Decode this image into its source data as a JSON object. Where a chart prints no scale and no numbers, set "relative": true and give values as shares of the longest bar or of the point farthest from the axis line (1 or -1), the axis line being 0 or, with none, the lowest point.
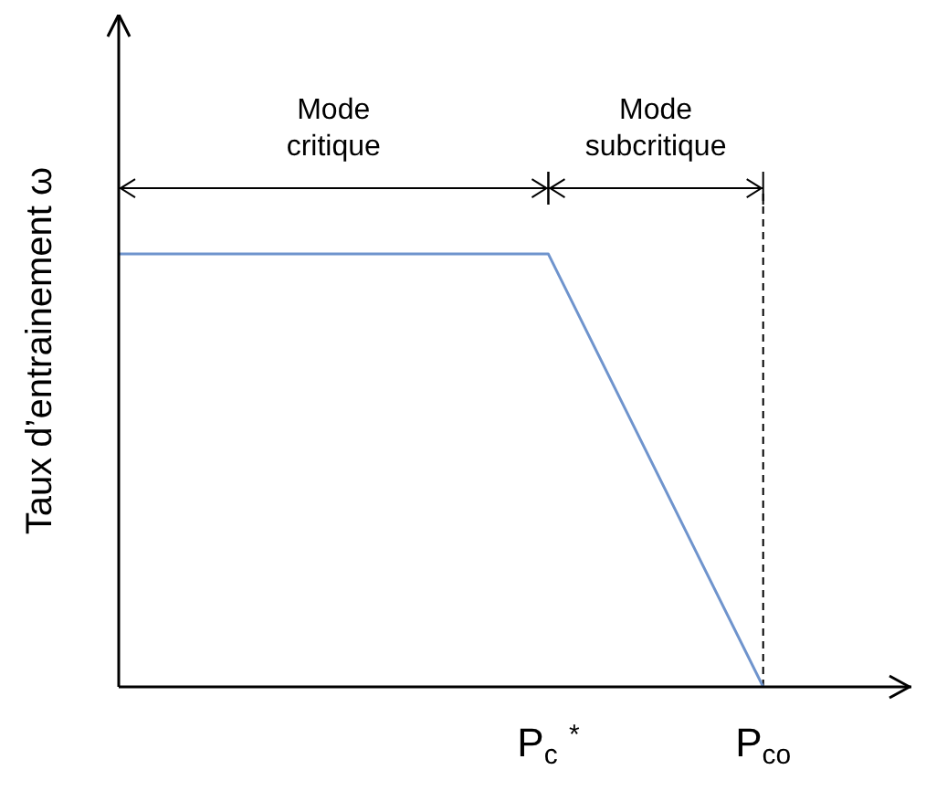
{
  "chart_data": {
    "type": "line",
    "relative": true,
    "ylabel": "Taux d’entrainement ω",
    "categories": [
      null,
      null,
      "P$_{c}$ $^{*}$",
      "P$_{co}$"
    ],
    "series": [
      {
        "color": "#6f94cd",
        "values": [
          1,
          1,
          1,
          0
        ]
      }
    ],
    "ref_lines": [
      {
        "axis": "x",
        "value": "P$_{co}$",
        "line_style": "dashed",
        "color": "#000000"
      }
    ],
    "annotations": [
      "Mode critique",
      "Mode subcritique"
    ],
    "marker": "none",
    "line_style": "solid"
  }
}
